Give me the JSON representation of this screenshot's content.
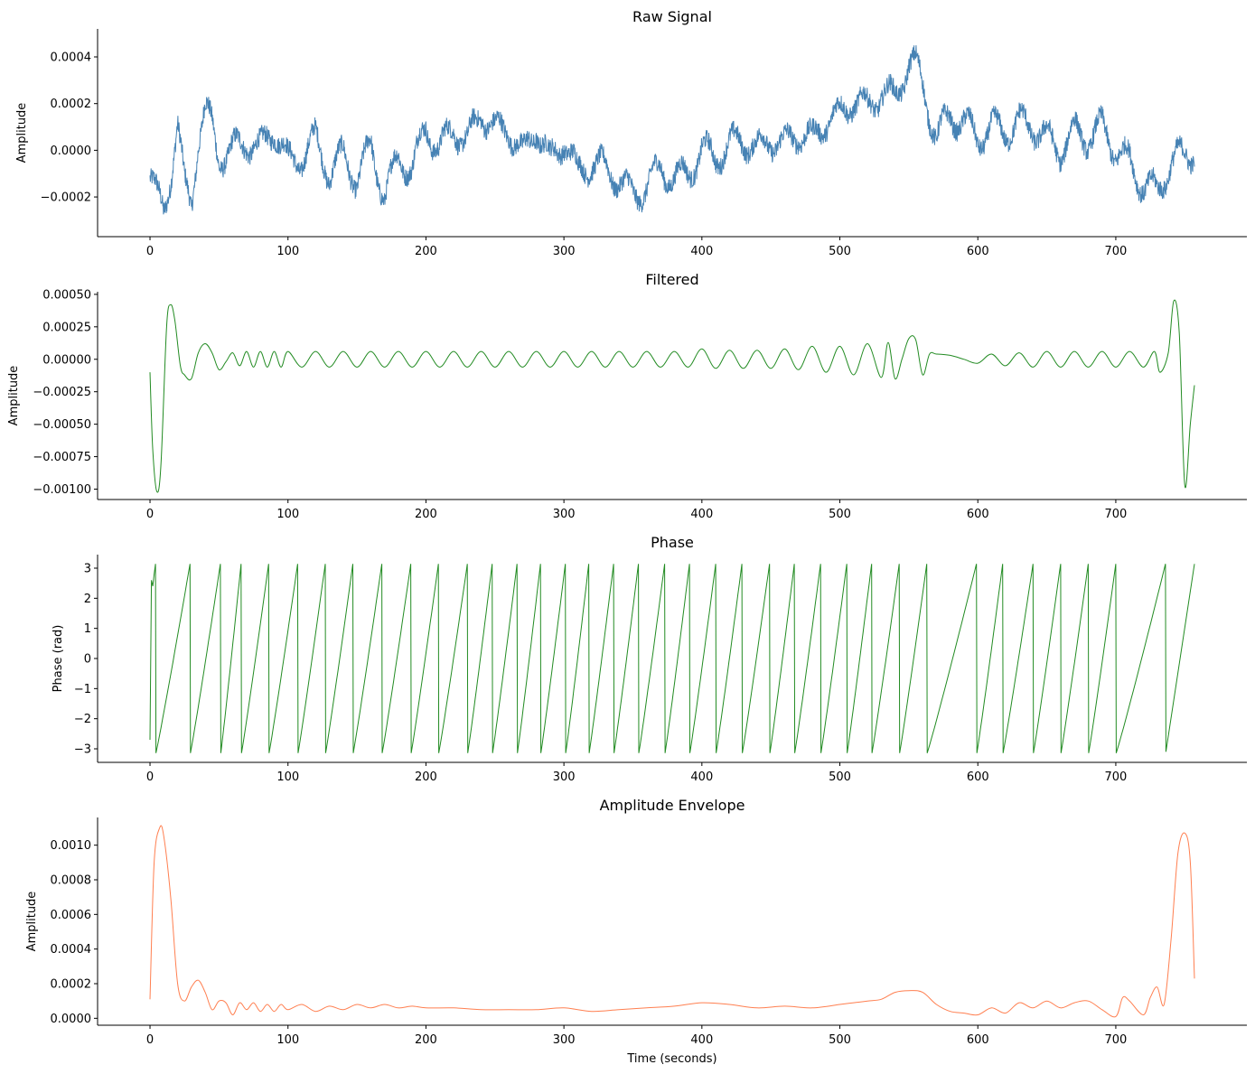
{
  "chart_data": [
    {
      "type": "line",
      "title": "Raw Signal",
      "xlabel": "",
      "ylabel": "Amplitude",
      "xlim": [
        -38,
        795
      ],
      "ylim": [
        -0.00037,
        0.00052
      ],
      "xticks": [
        0,
        100,
        200,
        300,
        400,
        500,
        600,
        700
      ],
      "xtick_labels": [
        "0",
        "100",
        "200",
        "300",
        "400",
        "500",
        "600",
        "700"
      ],
      "yticks": [
        -0.0002,
        0.0,
        0.0002,
        0.0004
      ],
      "ytick_labels": [
        "−0.0002",
        "0.0000",
        "0.0002",
        "0.0004"
      ],
      "color": "#4682b4",
      "grid": false,
      "series": [
        {
          "x": [
            0,
            5,
            10,
            15,
            20,
            25,
            30,
            35,
            40,
            45,
            50,
            60,
            70,
            80,
            90,
            100,
            110,
            120,
            130,
            140,
            150,
            160,
            170,
            180,
            190,
            200,
            210,
            220,
            230,
            240,
            250,
            260,
            270,
            280,
            290,
            300,
            310,
            320,
            330,
            340,
            350,
            360,
            370,
            380,
            390,
            400,
            410,
            420,
            430,
            440,
            450,
            460,
            470,
            480,
            490,
            500,
            510,
            520,
            530,
            540,
            550,
            555,
            560,
            570,
            580,
            590,
            600,
            610,
            620,
            630,
            640,
            650,
            660,
            670,
            680,
            690,
            700,
            710,
            720,
            730,
            740,
            750,
            757
          ],
          "y": [
            -0.00012,
            -0.0002,
            -0.00025,
            -0.0001,
            0.0001,
            -0.00015,
            -0.00022,
            5e-05,
            0.00017,
            0.0001,
            -3e-05,
            0.0,
            4e-05,
            0.0,
            0.0001,
            -5e-05,
            -3e-05,
            5e-05,
            -0.0001,
            -2e-05,
            -0.00013,
            2e-05,
            -0.0002,
            -3e-05,
            -8e-05,
            0.0001,
            0.0,
            0.0001,
            3e-05,
            0.00017,
            8e-05,
            0.0001,
            -3e-05,
            0.0001,
            -5e-05,
            5e-05,
            -0.0001,
            -5e-05,
            -8e-05,
            -0.00012,
            -0.0002,
            -0.00015,
            -8e-05,
            -0.00012,
            -0.0001,
            0.0,
            -3e-05,
            2e-05,
            5e-05,
            0.0,
            5e-05,
            2e-05,
            8e-05,
            4e-05,
            0.00013,
            0.00015,
            0.00022,
            0.00018,
            0.00025,
            0.00022,
            0.00038,
            0.00036,
            0.00028,
            5e-05,
            0.00015,
            0.00012,
            5e-05,
            0.0001,
            8e-05,
            0.00012,
            0.0001,
            5e-05,
            0.0,
            8e-05,
            5e-05,
            0.0001,
            0.0,
            -5e-05,
            -0.00015,
            -0.00018,
            -5e-05,
            -2e-05,
            0.0
          ]
        }
      ]
    },
    {
      "type": "line",
      "title": "Filtered",
      "xlabel": "",
      "ylabel": "Amplitude",
      "xlim": [
        -38,
        795
      ],
      "ylim": [
        -0.00108,
        0.00052
      ],
      "xticks": [
        0,
        100,
        200,
        300,
        400,
        500,
        600,
        700
      ],
      "xtick_labels": [
        "0",
        "100",
        "200",
        "300",
        "400",
        "500",
        "600",
        "700"
      ],
      "yticks": [
        -0.001,
        -0.00075,
        -0.0005,
        -0.00025,
        0.0,
        0.00025,
        0.0005
      ],
      "ytick_labels": [
        "−0.00100",
        "−0.00075",
        "−0.00050",
        "−0.00025",
        "0.00000",
        "0.00025",
        "0.00050"
      ],
      "color": "#228b22",
      "grid": false,
      "series": [
        {
          "x": [
            0,
            2,
            5,
            8,
            12,
            15,
            18,
            22,
            25,
            30,
            35,
            40,
            45,
            50,
            55,
            60,
            65,
            70,
            75,
            80,
            85,
            90,
            95,
            100,
            110,
            120,
            130,
            140,
            150,
            160,
            170,
            180,
            190,
            200,
            210,
            220,
            230,
            240,
            250,
            260,
            270,
            280,
            290,
            300,
            310,
            320,
            330,
            340,
            350,
            360,
            370,
            380,
            390,
            400,
            410,
            420,
            430,
            440,
            450,
            460,
            470,
            480,
            490,
            500,
            510,
            520,
            530,
            535,
            540,
            545,
            550,
            555,
            560,
            565,
            570,
            580,
            590,
            600,
            610,
            620,
            630,
            640,
            650,
            660,
            670,
            680,
            690,
            700,
            710,
            720,
            728,
            732,
            738,
            742,
            746,
            750,
            754,
            757
          ],
          "y": [
            -0.0001,
            -0.0007,
            -0.00102,
            -0.0008,
            0.00025,
            0.00042,
            0.0003,
            -5e-05,
            -0.00012,
            -0.00015,
            5e-05,
            0.00012,
            5e-05,
            -8e-05,
            -2e-05,
            5e-05,
            -5e-05,
            6e-05,
            -6e-05,
            6e-05,
            -6e-05,
            6e-05,
            -6e-05,
            6e-05,
            -6e-05,
            6e-05,
            -6e-05,
            6e-05,
            -6e-05,
            6e-05,
            -6e-05,
            6e-05,
            -6e-05,
            6e-05,
            -6e-05,
            6e-05,
            -6e-05,
            6e-05,
            -6e-05,
            6e-05,
            -6e-05,
            6e-05,
            -6e-05,
            6e-05,
            -6e-05,
            6e-05,
            -6e-05,
            6e-05,
            -6e-05,
            6e-05,
            -6e-05,
            6e-05,
            -6e-05,
            8e-05,
            -7e-05,
            7e-05,
            -7e-05,
            7e-05,
            -7e-05,
            8e-05,
            -8e-05,
            0.0001,
            -0.0001,
            0.0001,
            -0.00012,
            0.00012,
            -0.00014,
            0.00013,
            -0.00015,
            0.0,
            0.00016,
            0.00015,
            -0.00012,
            4e-05,
            4e-05,
            3e-05,
            0.0,
            -3e-05,
            4e-05,
            -5e-05,
            5e-05,
            -6e-05,
            6e-05,
            -6e-05,
            6e-05,
            -6e-05,
            6e-05,
            -6e-05,
            6e-05,
            -6e-05,
            6e-05,
            -0.0001,
            5e-05,
            0.00045,
            0.0002,
            -0.00097,
            -0.0005,
            -0.0002
          ]
        }
      ]
    },
    {
      "type": "line",
      "title": "Phase",
      "xlabel": "",
      "ylabel": "Phase (rad)",
      "xlim": [
        -38,
        795
      ],
      "ylim": [
        -3.45,
        3.45
      ],
      "xticks": [
        0,
        100,
        200,
        300,
        400,
        500,
        600,
        700
      ],
      "xtick_labels": [
        "0",
        "100",
        "200",
        "300",
        "400",
        "500",
        "600",
        "700"
      ],
      "yticks": [
        -3,
        -2,
        -1,
        0,
        1,
        2,
        3
      ],
      "ytick_labels": [
        "−3",
        "−2",
        "−1",
        "0",
        "1",
        "2",
        "3"
      ],
      "color": "#228b22",
      "grid": false,
      "cycle_resets": [
        4,
        29,
        51,
        66,
        86,
        107,
        127,
        147,
        168,
        189,
        209,
        230,
        248,
        266,
        283,
        301,
        318,
        336,
        354,
        373,
        391,
        410,
        429,
        449,
        467,
        486,
        505,
        523,
        543,
        563,
        599,
        618,
        640,
        660,
        680,
        700,
        736
      ],
      "series": [
        {
          "x": [
            0,
            1,
            2,
            3,
            4
          ],
          "y": [
            -2.7,
            2.6,
            2.4,
            2.8,
            3.14
          ]
        }
      ]
    },
    {
      "type": "line",
      "title": "Amplitude Envelope",
      "xlabel": "Time (seconds)",
      "ylabel": "Amplitude",
      "xlim": [
        -38,
        795
      ],
      "ylim": [
        -4e-05,
        0.00116
      ],
      "xticks": [
        0,
        100,
        200,
        300,
        400,
        500,
        600,
        700
      ],
      "xtick_labels": [
        "0",
        "100",
        "200",
        "300",
        "400",
        "500",
        "600",
        "700"
      ],
      "yticks": [
        0.0,
        0.0002,
        0.0004,
        0.0006,
        0.0008,
        0.001
      ],
      "ytick_labels": [
        "0.0000",
        "0.0002",
        "0.0004",
        "0.0006",
        "0.0008",
        "0.0010"
      ],
      "color": "#ff7f50",
      "grid": false,
      "series": [
        {
          "x": [
            0,
            3,
            7,
            10,
            15,
            20,
            25,
            30,
            35,
            40,
            45,
            50,
            55,
            60,
            65,
            70,
            75,
            80,
            85,
            90,
            95,
            100,
            110,
            120,
            130,
            140,
            150,
            160,
            170,
            180,
            190,
            200,
            220,
            240,
            260,
            280,
            300,
            320,
            340,
            360,
            380,
            400,
            420,
            440,
            460,
            480,
            500,
            510,
            520,
            530,
            540,
            550,
            560,
            570,
            580,
            590,
            600,
            610,
            620,
            630,
            640,
            650,
            660,
            670,
            680,
            690,
            700,
            705,
            710,
            720,
            725,
            730,
            735,
            740,
            745,
            750,
            754,
            757
          ],
          "y": [
            0.00011,
            0.0009,
            0.0011,
            0.00105,
            0.0007,
            0.0002,
            0.0001,
            0.00018,
            0.00022,
            0.00015,
            5e-05,
            0.0001,
            9e-05,
            2e-05,
            9e-05,
            5e-05,
            9e-05,
            4e-05,
            8e-05,
            4e-05,
            8e-05,
            5e-05,
            8e-05,
            4e-05,
            7e-05,
            5e-05,
            8e-05,
            6e-05,
            8e-05,
            6e-05,
            7e-05,
            6e-05,
            6e-05,
            5e-05,
            5e-05,
            5e-05,
            6e-05,
            4e-05,
            5e-05,
            6e-05,
            7e-05,
            9e-05,
            8e-05,
            6e-05,
            7e-05,
            6e-05,
            8e-05,
            9e-05,
            0.0001,
            0.00011,
            0.00015,
            0.00016,
            0.00015,
            8e-05,
            4e-05,
            3e-05,
            2e-05,
            6e-05,
            3e-05,
            9e-05,
            6e-05,
            0.0001,
            6e-05,
            9e-05,
            0.0001,
            5e-05,
            1e-05,
            0.00012,
            0.0001,
            2e-05,
            0.00012,
            0.00018,
            8e-05,
            0.00045,
            0.00095,
            0.00107,
            0.0009,
            0.00023
          ]
        }
      ]
    }
  ]
}
